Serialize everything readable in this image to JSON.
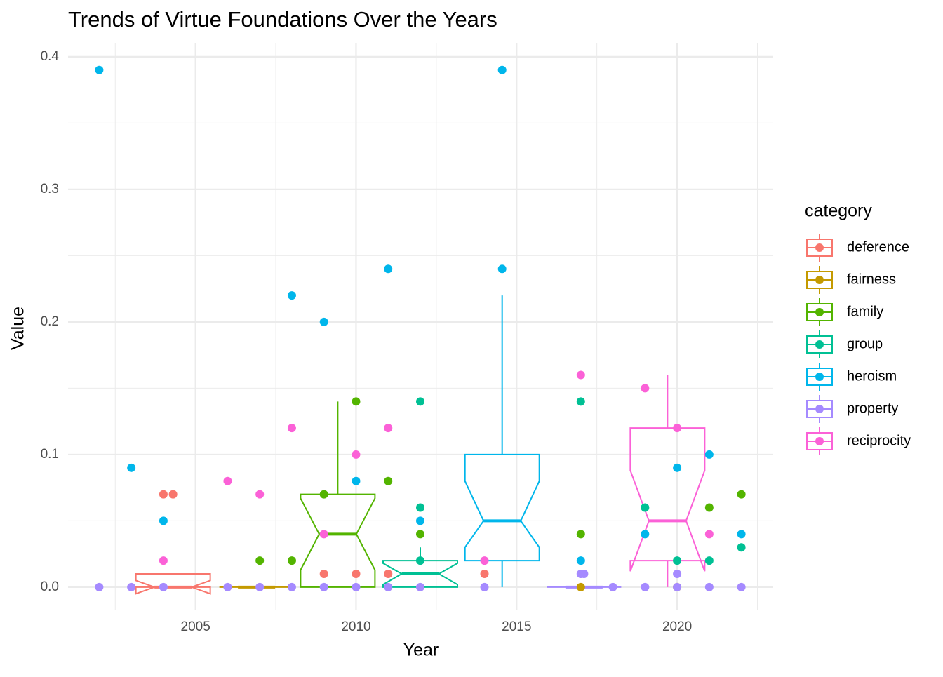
{
  "chart_data": {
    "type": "box",
    "title": "Trends of Virtue Foundations Over the Years",
    "x_label": "Year",
    "y_label": "Value",
    "legend_title": "category",
    "legend_position": "right",
    "xlim": [
      2001.03,
      2022.97
    ],
    "xticks": [
      2005,
      2010,
      2015,
      2020
    ],
    "minor_xticks": [
      2002.5,
      2007.5,
      2012.5,
      2017.5,
      2022.5
    ],
    "ylim": [
      -0.0175,
      0.41
    ],
    "yticks": [
      {
        "value": 0,
        "label": "0.0"
      },
      0.1,
      0.2,
      0.3,
      0.4
    ],
    "minor_yticks": [
      0.05,
      0.15,
      0.25,
      0.35
    ],
    "grid": true,
    "series": [
      {
        "name": "deference",
        "color": "#F8766D",
        "box": {
          "x": 2004.3,
          "whisker_low": 0,
          "q1": 0,
          "median": 0,
          "q3": 0.01,
          "whisker_high": 0.01,
          "notch_low": -0.005,
          "notch_high": 0.005
        },
        "x": [
          2004.0,
          2004.3,
          2009,
          2010,
          2011,
          2014
        ],
        "values": [
          0.07,
          0.07,
          0.01,
          0.01,
          0.01,
          0.01
        ]
      },
      {
        "name": "fairness",
        "color": "#C49A00",
        "box": {
          "x": 2006.9,
          "whisker_low": 0,
          "q1": 0,
          "median": 0,
          "q3": 0,
          "whisker_high": 0,
          "notch_low": 0,
          "notch_high": 0
        },
        "x": [
          2017,
          2020
        ],
        "values": [
          0,
          0
        ]
      },
      {
        "name": "family",
        "color": "#53B400",
        "box": {
          "x": 2009.43,
          "whisker_low": 0,
          "q1": 0,
          "median": 0.04,
          "q3": 0.07,
          "whisker_high": 0.14,
          "notch_low": 0.013,
          "notch_high": 0.067
        },
        "x": [
          2007,
          2008,
          2009,
          2010,
          2011,
          2012,
          2017,
          2021,
          2022
        ],
        "values": [
          0.02,
          0.02,
          0.07,
          0.14,
          0.08,
          0.04,
          0.04,
          0.06,
          0.07
        ]
      },
      {
        "name": "group",
        "color": "#00C094",
        "box": {
          "x": 2012.0,
          "whisker_low": 0,
          "q1": 0,
          "median": 0.01,
          "q3": 0.02,
          "whisker_high": 0.03,
          "notch_low": 0.002,
          "notch_high": 0.018
        },
        "x": [
          2012,
          2012,
          2012,
          2017,
          2019,
          2020,
          2021,
          2022
        ],
        "values": [
          0.14,
          0.06,
          0.02,
          0.14,
          0.06,
          0.02,
          0.02,
          0.03
        ]
      },
      {
        "name": "heroism",
        "color": "#00B6EB",
        "box": {
          "x": 2014.55,
          "whisker_low": 0,
          "q1": 0.02,
          "median": 0.05,
          "q3": 0.1,
          "whisker_high": 0.22,
          "notch_low": 0.03,
          "notch_high": 0.08
        },
        "x": [
          2002,
          2003,
          2004,
          2008,
          2009,
          2010,
          2011,
          2012,
          2014.55,
          2014.55,
          2017,
          2019,
          2020,
          2021,
          2022
        ],
        "values": [
          0.39,
          0.09,
          0.05,
          0.22,
          0.2,
          0.08,
          0.24,
          0.05,
          0.39,
          0.24,
          0.02,
          0.04,
          0.09,
          0.1,
          0.04
        ]
      },
      {
        "name": "property",
        "color": "#A58AFF",
        "box": {
          "x": 2017.1,
          "whisker_low": 0,
          "q1": 0,
          "median": 0,
          "q3": 0,
          "whisker_high": 0,
          "notch_low": 0,
          "notch_high": 0
        },
        "x": [
          2002,
          2003,
          2004,
          2006,
          2007,
          2008,
          2009,
          2010,
          2011,
          2012,
          2014,
          2017,
          2017.1,
          2018,
          2019,
          2020,
          2020,
          2021,
          2022
        ],
        "values": [
          0,
          0,
          0,
          0,
          0,
          0,
          0,
          0,
          0,
          0,
          0,
          0.01,
          0.01,
          0,
          0,
          0.01,
          0,
          0,
          0
        ]
      },
      {
        "name": "reciprocity",
        "color": "#FB61D7",
        "box": {
          "x": 2019.7,
          "whisker_low": 0,
          "q1": 0.02,
          "median": 0.05,
          "q3": 0.12,
          "whisker_high": 0.16,
          "notch_low": 0.012,
          "notch_high": 0.088
        },
        "x": [
          2004,
          2006,
          2007,
          2008,
          2009,
          2010,
          2011,
          2014,
          2017,
          2019,
          2020,
          2021
        ],
        "values": [
          0.02,
          0.08,
          0.07,
          0.12,
          0.04,
          0.1,
          0.12,
          0.02,
          0.16,
          0.15,
          0.12,
          0.04
        ]
      }
    ]
  }
}
